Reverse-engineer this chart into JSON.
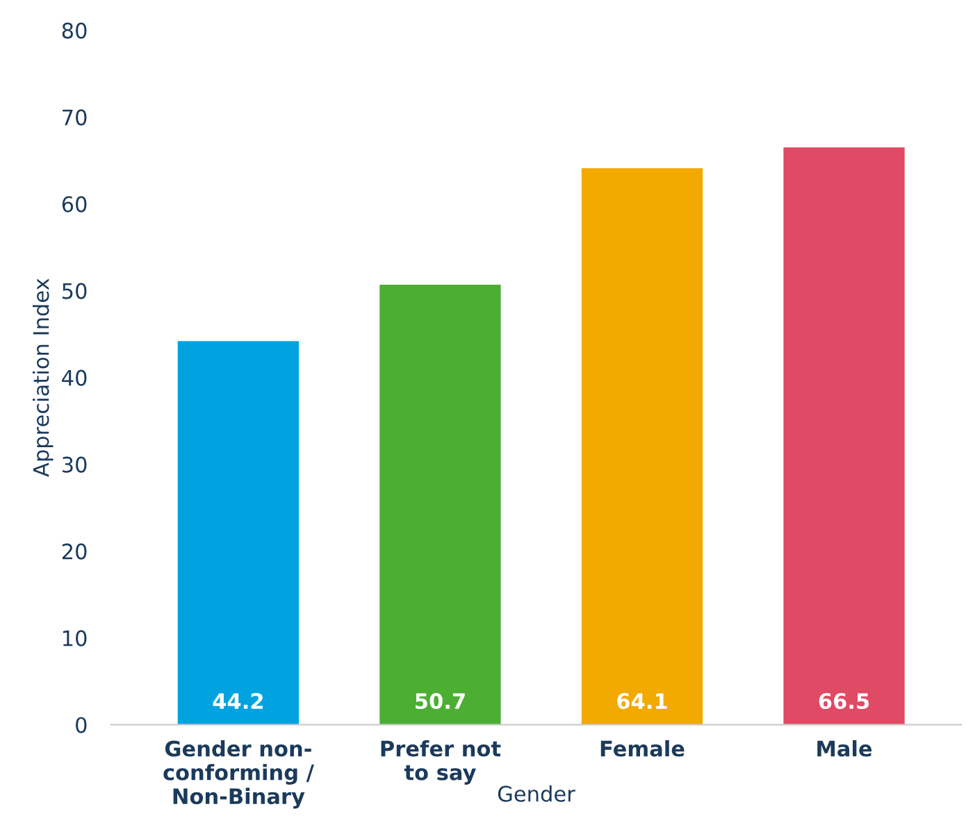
{
  "chart_data": {
    "type": "bar",
    "xlabel": "Gender",
    "ylabel": "Appreciation Index",
    "categories": [
      "Gender non-\nconforming /\nNon-Binary",
      "Prefer not\nto say",
      "Female",
      "Male"
    ],
    "values": [
      44.2,
      50.7,
      64.1,
      66.5
    ],
    "colors": [
      "#00a3e0",
      "#4caf34",
      "#f2a900",
      "#e04a64"
    ],
    "ylim": [
      0,
      80
    ],
    "yticks": [
      0,
      10,
      20,
      30,
      40,
      50,
      60,
      70,
      80
    ],
    "grid": false,
    "data_labels": true
  }
}
